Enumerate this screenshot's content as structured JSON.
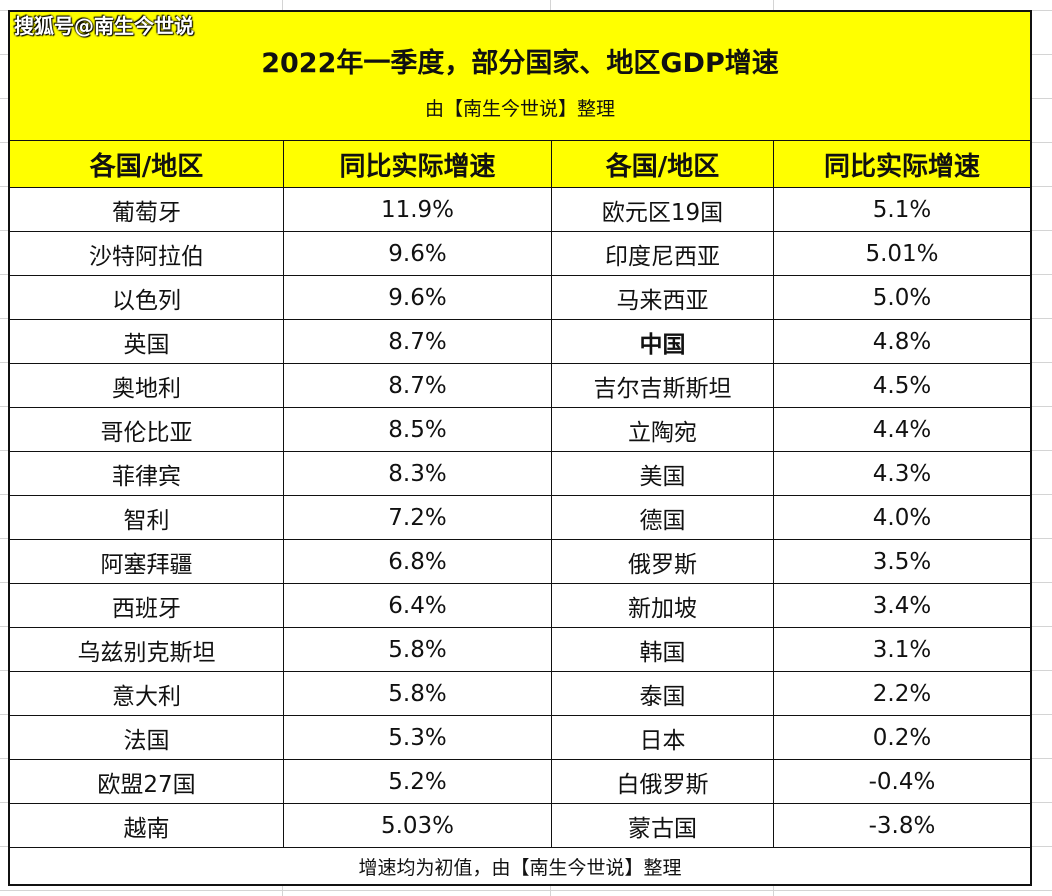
{
  "watermark": "搜狐号@南生今世说",
  "title": "2022年一季度，部分国家、地区GDP增速",
  "subtitle": "由【南生今世说】整理",
  "headers": [
    "各国/地区",
    "同比实际增速",
    "各国/地区",
    "同比实际增速"
  ],
  "footer": "增速均为初值，由【南生今世说】整理",
  "highlight_color": "#ffff00",
  "chart_data": {
    "type": "table",
    "title": "2022年一季度，部分国家、地区GDP增速",
    "columns": [
      "各国/地区",
      "同比实际增速",
      "各国/地区",
      "同比实际增速"
    ],
    "rows": [
      [
        "葡萄牙",
        "11.9%",
        "欧元区19国",
        "5.1%"
      ],
      [
        "沙特阿拉伯",
        "9.6%",
        "印度尼西亚",
        "5.01%"
      ],
      [
        "以色列",
        "9.6%",
        "马来西亚",
        "5.0%"
      ],
      [
        "英国",
        "8.7%",
        "中国",
        "4.8%"
      ],
      [
        "奥地利",
        "8.7%",
        "吉尔吉斯斯坦",
        "4.5%"
      ],
      [
        "哥伦比亚",
        "8.5%",
        "立陶宛",
        "4.4%"
      ],
      [
        "菲律宾",
        "8.3%",
        "美国",
        "4.3%"
      ],
      [
        "智利",
        "7.2%",
        "德国",
        "4.0%"
      ],
      [
        "阿塞拜疆",
        "6.8%",
        "俄罗斯",
        "3.5%"
      ],
      [
        "西班牙",
        "6.4%",
        "新加坡",
        "3.4%"
      ],
      [
        "乌兹别克斯坦",
        "5.8%",
        "韩国",
        "3.1%"
      ],
      [
        "意大利",
        "5.8%",
        "泰国",
        "2.2%"
      ],
      [
        "法国",
        "5.3%",
        "日本",
        "0.2%"
      ],
      [
        "欧盟27国",
        "5.2%",
        "白俄罗斯",
        "-0.4%"
      ],
      [
        "越南",
        "5.03%",
        "蒙古国",
        "-3.8%"
      ]
    ],
    "bold_entries": [
      "中国"
    ]
  }
}
